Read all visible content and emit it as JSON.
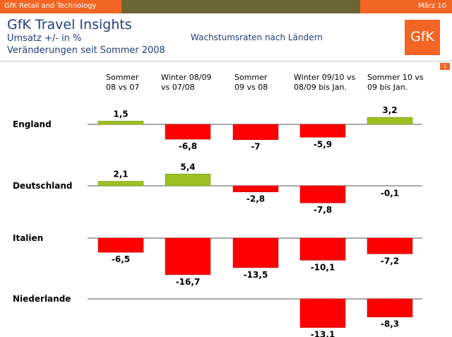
{
  "header": {
    "brand_left": "GfK Retail and Technology",
    "date": "März 10",
    "title": "GfK Travel Insights",
    "subtitle_line1": "Umsatz +/- in %",
    "subtitle_line2": "Veränderungen seit Sommer 2008",
    "caption": "Wachstumsraten nach Ländern",
    "logo_text": "GfK",
    "page_number": "1"
  },
  "colors": {
    "positive": "#9cc022",
    "negative": "#fe0000",
    "accent": "#f26522",
    "title": "#1f3f7a"
  },
  "chart_data": {
    "type": "bar",
    "title": "",
    "xlabel": "",
    "ylabel": "",
    "categories": [
      [
        "Sommer",
        "08 vs 07"
      ],
      [
        "Winter 08/09",
        "vs 07/08"
      ],
      [
        "Sommer",
        "09 vs 08"
      ],
      [
        "Winter 09/10 vs",
        "08/09 bis Jan."
      ],
      [
        "Sommer 10 vs",
        "09 bis Jan."
      ]
    ],
    "series": [
      {
        "name": "England",
        "values": [
          1.5,
          -6.8,
          -7,
          -5.9,
          3.2
        ],
        "labels": [
          "1,5",
          "-6,8",
          "-7",
          "-5,9",
          "3,2"
        ]
      },
      {
        "name": "Deutschland",
        "values": [
          2.1,
          5.4,
          -2.8,
          -7.8,
          -0.1
        ],
        "labels": [
          "2,1",
          "5,4",
          "-2,8",
          "-7,8",
          "-0,1"
        ]
      },
      {
        "name": "Italien",
        "values": [
          -6.5,
          -16.7,
          -13.5,
          -10.1,
          -7.2
        ],
        "labels": [
          "-6,5",
          "-16,7",
          "-13,5",
          "-10,1",
          "-7,2"
        ]
      },
      {
        "name": "Niederlande",
        "values": [
          null,
          null,
          null,
          -13.1,
          -8.3
        ],
        "labels": [
          "",
          "",
          "",
          "-13,1",
          "-8,3"
        ]
      }
    ]
  }
}
